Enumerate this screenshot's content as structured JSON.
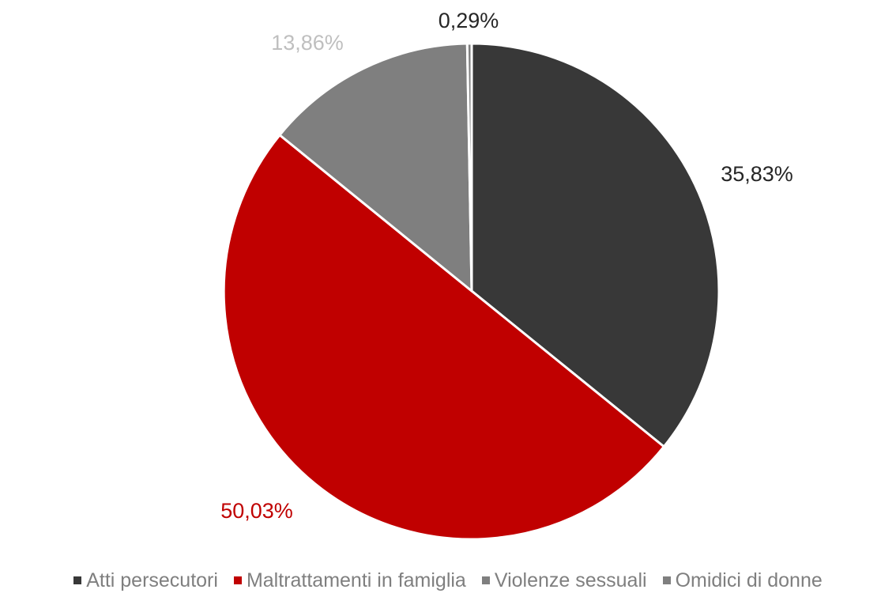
{
  "chart_data": {
    "type": "pie",
    "categories": [
      "Atti persecutori",
      "Maltrattamenti in famiglia",
      "Violenze sessuali",
      "Omidici di donne"
    ],
    "values": [
      35.83,
      50.03,
      13.86,
      0.29
    ],
    "labels": [
      "35,83%",
      "50,03%",
      "13,86%",
      "0,29%"
    ],
    "colors": [
      "#383838",
      "#c00000",
      "#7f7f7f",
      "#7f7f7f"
    ],
    "label_colors": [
      "#262626",
      "#c00000",
      "#bfbfbf",
      "#262626"
    ],
    "legend_position": "bottom"
  }
}
